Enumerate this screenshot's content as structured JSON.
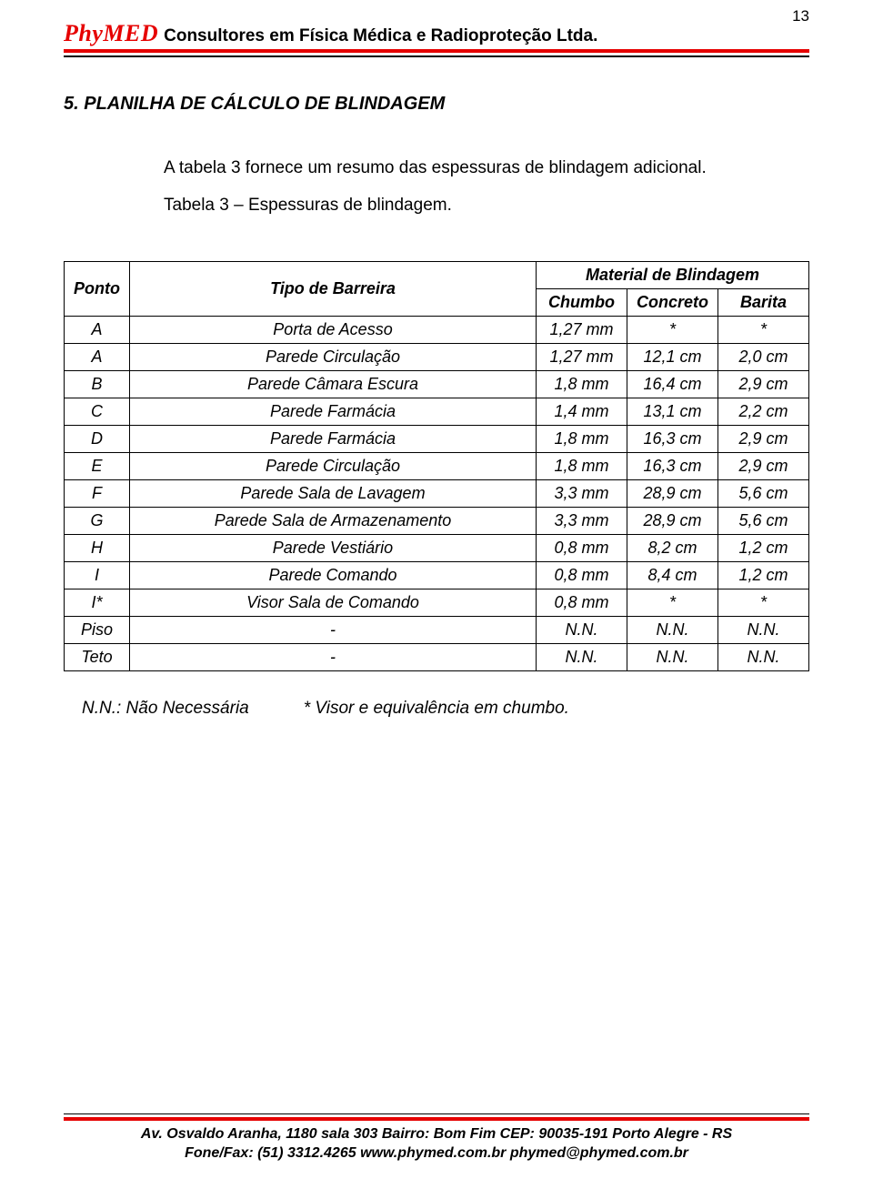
{
  "page_number": "13",
  "header": {
    "brand": "PhyMED",
    "rest": "Consultores em Física Médica e Radioproteção Ltda."
  },
  "section_title": "5. PLANILHA DE CÁLCULO DE BLINDAGEM",
  "intro_line1": "A tabela 3 fornece um resumo das espessuras de blindagem adicional.",
  "intro_line2": "Tabela 3 – Espessuras de blindagem.",
  "table": {
    "col_ponto": "Ponto",
    "col_tipo": "Tipo de Barreira",
    "col_material": "Material de Blindagem",
    "sub_chumbo": "Chumbo",
    "sub_concreto": "Concreto",
    "sub_barita": "Barita",
    "rows": [
      {
        "p": "A",
        "t": "Porta de Acesso",
        "c1": "1,27 mm",
        "c2": "*",
        "c3": "*"
      },
      {
        "p": "A",
        "t": "Parede Circulação",
        "c1": "1,27 mm",
        "c2": "12,1 cm",
        "c3": "2,0 cm"
      },
      {
        "p": "B",
        "t": "Parede Câmara Escura",
        "c1": "1,8 mm",
        "c2": "16,4 cm",
        "c3": "2,9 cm"
      },
      {
        "p": "C",
        "t": "Parede Farmácia",
        "c1": "1,4 mm",
        "c2": "13,1 cm",
        "c3": "2,2 cm"
      },
      {
        "p": "D",
        "t": "Parede Farmácia",
        "c1": "1,8 mm",
        "c2": "16,3 cm",
        "c3": "2,9 cm"
      },
      {
        "p": "E",
        "t": "Parede Circulação",
        "c1": "1,8 mm",
        "c2": "16,3 cm",
        "c3": "2,9 cm"
      },
      {
        "p": "F",
        "t": "Parede Sala de Lavagem",
        "c1": "3,3 mm",
        "c2": "28,9 cm",
        "c3": "5,6 cm"
      },
      {
        "p": "G",
        "t": "Parede Sala de Armazenamento",
        "c1": "3,3 mm",
        "c2": "28,9 cm",
        "c3": "5,6 cm"
      },
      {
        "p": "H",
        "t": "Parede Vestiário",
        "c1": "0,8 mm",
        "c2": "8,2 cm",
        "c3": "1,2 cm"
      },
      {
        "p": "I",
        "t": "Parede Comando",
        "c1": "0,8 mm",
        "c2": "8,4 cm",
        "c3": "1,2 cm"
      },
      {
        "p": "I*",
        "t": "Visor Sala de Comando",
        "c1": "0,8 mm",
        "c2": "*",
        "c3": "*"
      },
      {
        "p": "Piso",
        "t": "-",
        "c1": "N.N.",
        "c2": "N.N.",
        "c3": "N.N."
      },
      {
        "p": "Teto",
        "t": "-",
        "c1": "N.N.",
        "c2": "N.N.",
        "c3": "N.N."
      }
    ]
  },
  "legend": {
    "nn": "N.N.: Não Necessária",
    "visor": "* Visor e equivalência em chumbo."
  },
  "footer": {
    "line1": "Av. Osvaldo Aranha, 1180 sala 303    Bairro: Bom Fim    CEP: 90035-191    Porto Alegre - RS",
    "line2": "Fone/Fax: (51) 3312.4265    www.phymed.com.br    phymed@phymed.com.br"
  },
  "colors": {
    "accent_red": "#e60000",
    "text": "#000000",
    "background": "#ffffff"
  }
}
